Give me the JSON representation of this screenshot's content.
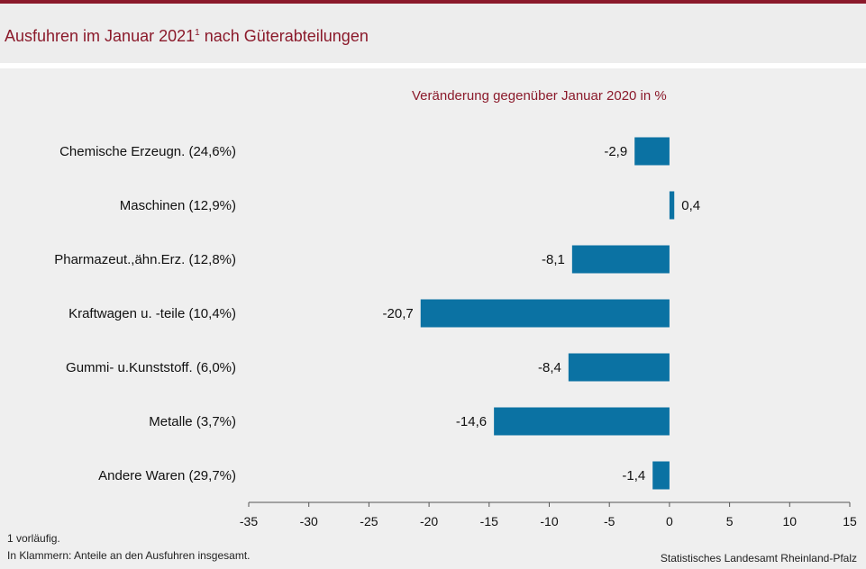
{
  "title": "Ausfuhren im Januar 2021",
  "title_sup": "1",
  "title_rest": " nach Güterabteilungen",
  "footnotes": [
    "1 vorläufig.",
    "In Klammern: Anteile an den Ausfuhren insgesamt."
  ],
  "source": "Statistisches Landesamt Rheinland-Pfalz",
  "colors": {
    "accent": "#8b1a2b",
    "bar": "#0b72a3"
  },
  "chart_data": {
    "type": "bar",
    "orientation": "horizontal",
    "subtitle": "Veränderung  gegenüber  Januar 2020 in %",
    "categories": [
      "Chemische Erzeugn. (24,6%)",
      "Maschinen (12,9%)",
      "Pharmazeut.,ähn.Erz. (12,8%)",
      "Kraftwagen u. -teile (10,4%)",
      "Gummi- u.Kunststoff. (6,0%)",
      "Metalle (3,7%)",
      "Andere Waren (29,7%)"
    ],
    "values": [
      -2.9,
      0.4,
      -8.1,
      -20.7,
      -8.4,
      -14.6,
      -1.4
    ],
    "value_labels": [
      "-2,9",
      "0,4",
      "-8,1",
      "-20,7",
      "-8,4",
      "-14,6",
      "-1,4"
    ],
    "xlim": [
      -35,
      15
    ],
    "xticks": [
      -35,
      -30,
      -25,
      -20,
      -15,
      -10,
      -5,
      0,
      5,
      10,
      15
    ],
    "xtick_labels": [
      "-35",
      "-30",
      "-25",
      "-20",
      "-15",
      "-10",
      "-5",
      "0",
      "5",
      "10",
      "15"
    ],
    "grid": false,
    "legend": "none"
  }
}
